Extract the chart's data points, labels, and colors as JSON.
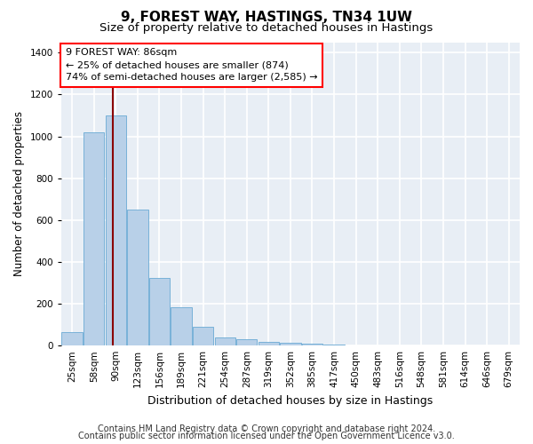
{
  "title1": "9, FOREST WAY, HASTINGS, TN34 1UW",
  "title2": "Size of property relative to detached houses in Hastings",
  "xlabel": "Distribution of detached houses by size in Hastings",
  "ylabel": "Number of detached properties",
  "categories": [
    "25sqm",
    "58sqm",
    "90sqm",
    "123sqm",
    "156sqm",
    "189sqm",
    "221sqm",
    "254sqm",
    "287sqm",
    "319sqm",
    "352sqm",
    "385sqm",
    "417sqm",
    "450sqm",
    "483sqm",
    "516sqm",
    "548sqm",
    "581sqm",
    "614sqm",
    "646sqm",
    "679sqm"
  ],
  "values": [
    65,
    1020,
    1100,
    650,
    325,
    185,
    90,
    40,
    30,
    18,
    12,
    8,
    3,
    2,
    1,
    1,
    0,
    0,
    0,
    0,
    0
  ],
  "bar_color": "#b8d0e8",
  "bar_edgecolor": "#6aaad4",
  "annotation_line1": "9 FOREST WAY: 86sqm",
  "annotation_line2": "← 25% of detached houses are smaller (874)",
  "annotation_line3": "74% of semi-detached houses are larger (2,585) →",
  "annotation_box_color": "white",
  "annotation_box_edgecolor": "red",
  "vline_color": "darkred",
  "ylim": [
    0,
    1450
  ],
  "yticks": [
    0,
    200,
    400,
    600,
    800,
    1000,
    1200,
    1400
  ],
  "footer1": "Contains HM Land Registry data © Crown copyright and database right 2024.",
  "footer2": "Contains public sector information licensed under the Open Government Licence v3.0.",
  "bg_color": "#ffffff",
  "plot_bg_color": "#e8eef5",
  "grid_color": "#ffffff",
  "title1_fontsize": 11,
  "title2_fontsize": 9.5,
  "xlabel_fontsize": 9,
  "ylabel_fontsize": 8.5,
  "tick_fontsize": 7.5,
  "footer_fontsize": 7,
  "vline_x_index": 1.87
}
